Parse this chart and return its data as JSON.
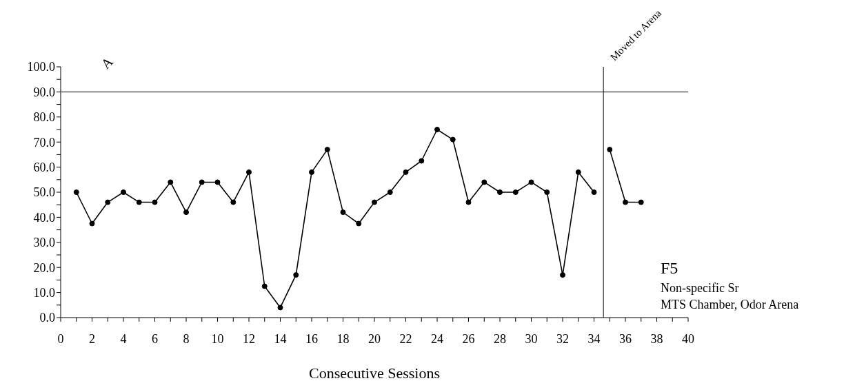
{
  "chart_data": {
    "type": "line",
    "xlabel": "Consecutive Sessions",
    "xlim": [
      0,
      40
    ],
    "xticks": [
      0,
      {
        "value": 1,
        "label": null
      },
      2,
      {
        "value": 3,
        "label": null
      },
      4,
      {
        "value": 5,
        "label": null
      },
      6,
      {
        "value": 7,
        "label": null
      },
      8,
      {
        "value": 9,
        "label": null
      },
      10,
      {
        "value": 11,
        "label": null
      },
      12,
      {
        "value": 13,
        "label": null
      },
      14,
      {
        "value": 15,
        "label": null
      },
      16,
      {
        "value": 17,
        "label": null
      },
      18,
      {
        "value": 19,
        "label": null
      },
      20,
      {
        "value": 21,
        "label": null
      },
      22,
      {
        "value": 23,
        "label": null
      },
      24,
      {
        "value": 25,
        "label": null
      },
      26,
      {
        "value": 27,
        "label": null
      },
      28,
      {
        "value": 29,
        "label": null
      },
      30,
      {
        "value": 31,
        "label": null
      },
      32,
      {
        "value": 33,
        "label": null
      },
      34,
      {
        "value": 35,
        "label": null
      },
      36,
      {
        "value": 37,
        "label": null
      },
      38,
      {
        "value": 39,
        "label": null
      },
      40
    ],
    "ylim": [
      0,
      100
    ],
    "yticks": [
      {
        "value": 0,
        "label": "0.0"
      },
      {
        "value": 5,
        "label": null
      },
      {
        "value": 10,
        "label": "10.0"
      },
      {
        "value": 15,
        "label": null
      },
      {
        "value": 20,
        "label": "20.0"
      },
      {
        "value": 25,
        "label": null
      },
      {
        "value": 30,
        "label": "30.0"
      },
      {
        "value": 35,
        "label": null
      },
      {
        "value": 40,
        "label": "40.0"
      },
      {
        "value": 45,
        "label": null
      },
      {
        "value": 50,
        "label": "50.0"
      },
      {
        "value": 55,
        "label": null
      },
      {
        "value": 60,
        "label": "60.0"
      },
      {
        "value": 65,
        "label": null
      },
      {
        "value": 70,
        "label": "70.0"
      },
      {
        "value": 75,
        "label": null
      },
      {
        "value": 80,
        "label": "80.0"
      },
      {
        "value": 85,
        "label": null
      },
      {
        "value": 90,
        "label": "90.0"
      },
      {
        "value": 95,
        "label": null
      },
      {
        "value": 100,
        "label": "100.0"
      }
    ],
    "grid": false,
    "marker": "circle",
    "line_style": "solid",
    "series": [
      {
        "color": "#000000",
        "x": [
          1,
          2,
          3,
          4,
          5,
          6,
          7,
          8,
          9,
          10,
          11,
          12,
          13,
          14,
          15,
          16,
          17,
          18,
          19,
          20,
          21,
          22,
          23,
          24,
          25,
          26,
          27,
          28,
          29,
          30,
          31,
          32,
          33,
          34
        ],
        "values": [
          50,
          37.5,
          46,
          50,
          46,
          46,
          54,
          42,
          54,
          54,
          46,
          58,
          12.5,
          4,
          17,
          58,
          67,
          42,
          37.5,
          46,
          50,
          58,
          62.5,
          75,
          71,
          46,
          54,
          50,
          50,
          54,
          50,
          17,
          58,
          50
        ]
      },
      {
        "color": "#000000",
        "x": [
          35,
          36,
          37
        ],
        "values": [
          67,
          46,
          46
        ]
      }
    ],
    "ref_lines": [
      {
        "axis": "y",
        "value": 90
      },
      {
        "axis": "x",
        "value": 34.6,
        "label": "Moved to Arena"
      }
    ],
    "annotations": [
      "A",
      "F5",
      "Non-specific Sr",
      "MTS Chamber, Odor Arena"
    ]
  }
}
